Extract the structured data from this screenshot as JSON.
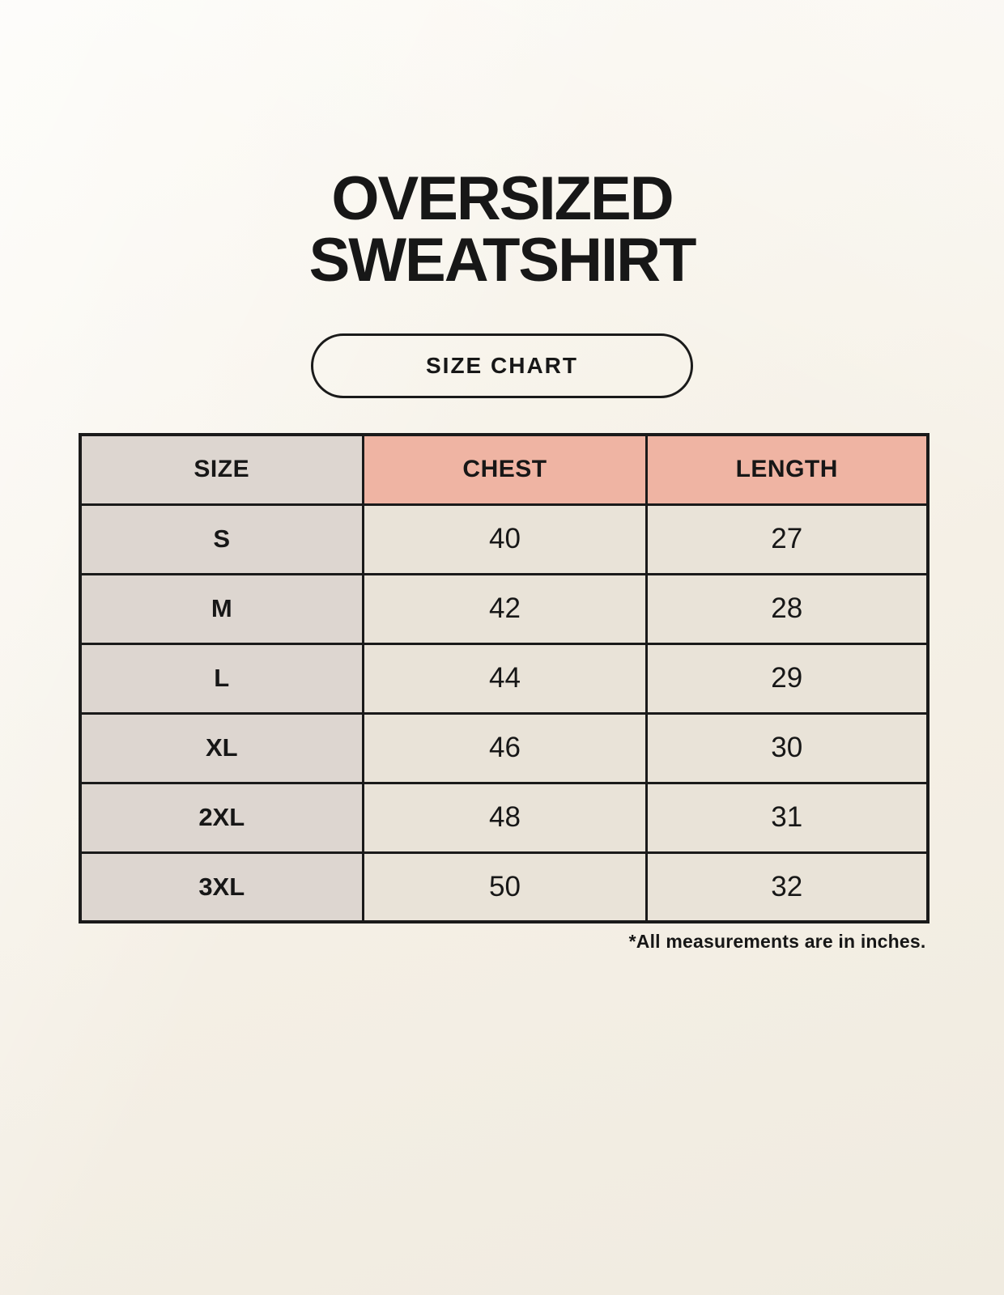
{
  "title": {
    "line1": "OVERSIZED",
    "line2": "SWEATSHIRT"
  },
  "size_chart_button": {
    "label": "SIZE CHART"
  },
  "table": {
    "headers": [
      "SIZE",
      "CHEST",
      "LENGTH"
    ],
    "rows": [
      {
        "size": "S",
        "chest": "40",
        "length": "27"
      },
      {
        "size": "M",
        "chest": "42",
        "length": "28"
      },
      {
        "size": "L",
        "chest": "44",
        "length": "29"
      },
      {
        "size": "XL",
        "chest": "46",
        "length": "30"
      },
      {
        "size": "2XL",
        "chest": "48",
        "length": "31"
      },
      {
        "size": "3XL",
        "chest": "50",
        "length": "32"
      }
    ]
  },
  "footnote": "*All measurements are in inches.",
  "chart_data": {
    "type": "table",
    "title": "OVERSIZED SWEATSHIRT SIZE CHART",
    "columns": [
      "SIZE",
      "CHEST",
      "LENGTH"
    ],
    "rows": [
      [
        "S",
        40,
        27
      ],
      [
        "M",
        42,
        28
      ],
      [
        "L",
        44,
        29
      ],
      [
        "XL",
        46,
        30
      ],
      [
        "2XL",
        48,
        31
      ],
      [
        "3XL",
        50,
        32
      ]
    ],
    "units_note": "*All measurements are in inches."
  },
  "colors": {
    "header_pink": "#efb4a3",
    "column_gray": "#ddd6d0",
    "cell_cream": "#e9e3d8",
    "border_color": "#1a1a1a",
    "text_color": "#171717",
    "bg_light": "#fbf9f3",
    "bg_base": "#f5f0e6",
    "bg_dark": "#f0ebe0"
  }
}
